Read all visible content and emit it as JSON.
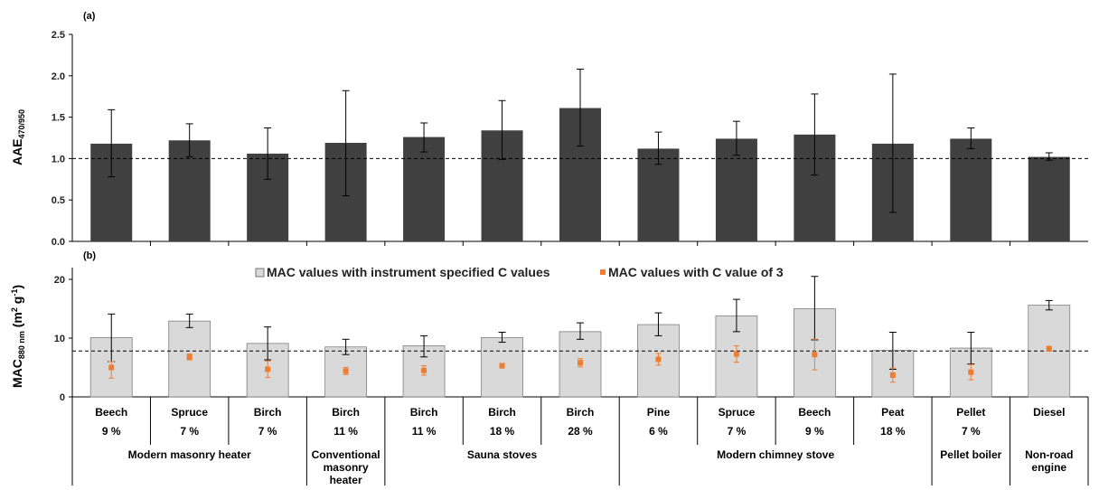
{
  "chart_data": [
    {
      "type": "bar",
      "panel_label": "(a)",
      "ylabel_main": "AAE",
      "ylabel_sub": "470/950",
      "ylim": [
        0,
        2.5
      ],
      "yticks": [
        "0.0",
        "0.5",
        "1.0",
        "1.5",
        "2.0",
        "2.5"
      ],
      "reference_line": 1.0,
      "values": [
        1.18,
        1.22,
        1.06,
        1.19,
        1.26,
        1.34,
        1.61,
        1.12,
        1.24,
        1.29,
        1.18,
        1.24,
        1.02
      ],
      "err_low": [
        0.78,
        1.02,
        0.75,
        0.55,
        1.08,
        0.99,
        1.15,
        0.93,
        1.04,
        0.8,
        0.35,
        1.12,
        0.98
      ],
      "err_high": [
        1.59,
        1.42,
        1.37,
        1.82,
        1.43,
        1.7,
        2.08,
        1.32,
        1.45,
        1.78,
        2.02,
        1.37,
        1.07
      ],
      "bar_color": "#404040"
    },
    {
      "type": "bar",
      "panel_label": "(b)",
      "ylabel_main": "MAC",
      "ylabel_sub": "880 nm",
      "ylabel_unit": " (m",
      "ylabel_sup": "2",
      "ylabel_unit2": " g",
      "ylabel_sup2": "-1",
      "ylabel_end": ")",
      "ylim": [
        0,
        22
      ],
      "yticks": [
        "0",
        "10",
        "20"
      ],
      "reference_line": 7.8,
      "series": [
        {
          "name": "MAC values with instrument specified C values",
          "values": [
            10.1,
            12.9,
            9.1,
            8.5,
            8.7,
            10.1,
            11.1,
            12.3,
            13.8,
            15.0,
            7.9,
            8.3,
            15.6
          ],
          "err_low": [
            6.0,
            11.8,
            6.3,
            7.2,
            6.8,
            9.3,
            9.8,
            10.4,
            11.1,
            9.7,
            4.7,
            5.6,
            14.8
          ],
          "err_high": [
            14.1,
            14.1,
            11.9,
            9.8,
            10.4,
            11.0,
            12.6,
            14.3,
            16.6,
            20.5,
            11.0,
            11.0,
            16.4
          ],
          "color": "#d9d9d9"
        },
        {
          "name": "MAC values with C value of 3",
          "values": [
            5.0,
            6.8,
            4.7,
            4.4,
            4.5,
            5.3,
            5.8,
            6.4,
            7.3,
            7.2,
            3.7,
            4.2,
            8.2
          ],
          "err_low": [
            3.2,
            6.3,
            3.3,
            3.8,
            3.7,
            4.9,
            5.1,
            5.4,
            5.9,
            4.6,
            2.5,
            2.9,
            7.8
          ],
          "err_high": [
            6.0,
            7.3,
            6.1,
            5.0,
            5.3,
            5.7,
            6.5,
            7.4,
            8.7,
            9.8,
            4.9,
            5.5,
            8.6
          ],
          "color": "#ed7d31"
        }
      ]
    }
  ],
  "categories": {
    "fuels": [
      "Beech",
      "Spruce",
      "Birch",
      "Birch",
      "Birch",
      "Birch",
      "Birch",
      "Pine",
      "Spruce",
      "Beech",
      "Peat",
      "Pellet",
      "Diesel"
    ],
    "moisture": [
      "9 %",
      "7 %",
      "7 %",
      "11 %",
      "11 %",
      "18 %",
      "28 %",
      "6 %",
      "7 %",
      "9 %",
      "18 %",
      "7 %",
      ""
    ],
    "groups": [
      {
        "label": "Modern masonry heater",
        "start": 0,
        "end": 2
      },
      {
        "label": "Conventional masonry heater",
        "start": 3,
        "end": 3
      },
      {
        "label": "Sauna stoves",
        "start": 4,
        "end": 6
      },
      {
        "label": "Modern chimney stove",
        "start": 7,
        "end": 10
      },
      {
        "label": "Pellet boiler",
        "start": 11,
        "end": 11
      },
      {
        "label": "Non-road engine",
        "start": 12,
        "end": 12
      }
    ],
    "group_lines": [
      [
        "Modern masonry heater"
      ],
      [
        "Conventional",
        "masonry",
        "heater"
      ],
      [
        "Sauna stoves"
      ],
      [
        "Modern chimney stove"
      ],
      [
        "Pellet boiler"
      ],
      [
        "Non-road",
        "engine"
      ]
    ]
  }
}
